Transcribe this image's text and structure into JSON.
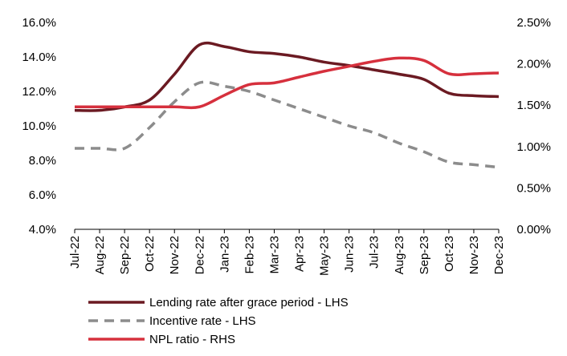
{
  "chart_data": {
    "type": "line",
    "title": "",
    "categories": [
      "Jul-22",
      "Aug-22",
      "Sep-22",
      "Oct-22",
      "Nov-22",
      "Dec-22",
      "Jan-23",
      "Feb-23",
      "Mar-23",
      "Apr-23",
      "May-23",
      "Jun-23",
      "Jul-23",
      "Aug-23",
      "Sep-23",
      "Oct-23",
      "Nov-23",
      "Dec-23"
    ],
    "y_left": {
      "ylim": [
        4.0,
        16.0
      ],
      "ticks": [
        "4.0%",
        "6.0%",
        "8.0%",
        "10.0%",
        "12.0%",
        "14.0%",
        "16.0%"
      ]
    },
    "y_right": {
      "ylim": [
        0.0,
        2.5
      ],
      "ticks": [
        "0.00%",
        "0.50%",
        "1.00%",
        "1.50%",
        "2.00%",
        "2.50%"
      ]
    },
    "series": [
      {
        "name": "Lending rate after grace period - LHS",
        "axis": "left",
        "color": "#6b1a22",
        "style": "solid",
        "values": [
          10.9,
          10.9,
          11.1,
          11.5,
          13.0,
          14.7,
          14.6,
          14.3,
          14.2,
          14.0,
          13.7,
          13.5,
          13.25,
          13.0,
          12.7,
          11.9,
          11.75,
          11.7
        ]
      },
      {
        "name": "Incentive rate - LHS",
        "axis": "left",
        "color": "#8c8c8c",
        "style": "dashed",
        "values": [
          8.7,
          8.7,
          8.7,
          9.9,
          11.4,
          12.5,
          12.3,
          12.0,
          11.5,
          11.0,
          10.5,
          10.0,
          9.6,
          9.0,
          8.5,
          7.9,
          7.75,
          7.6
        ]
      },
      {
        "name": "NPL ratio - RHS",
        "axis": "right",
        "color": "#d6303d",
        "style": "solid",
        "values": [
          1.48,
          1.48,
          1.48,
          1.48,
          1.48,
          1.48,
          1.62,
          1.75,
          1.77,
          1.84,
          1.91,
          1.97,
          2.03,
          2.07,
          2.04,
          1.88,
          1.88,
          1.89
        ]
      }
    ]
  }
}
